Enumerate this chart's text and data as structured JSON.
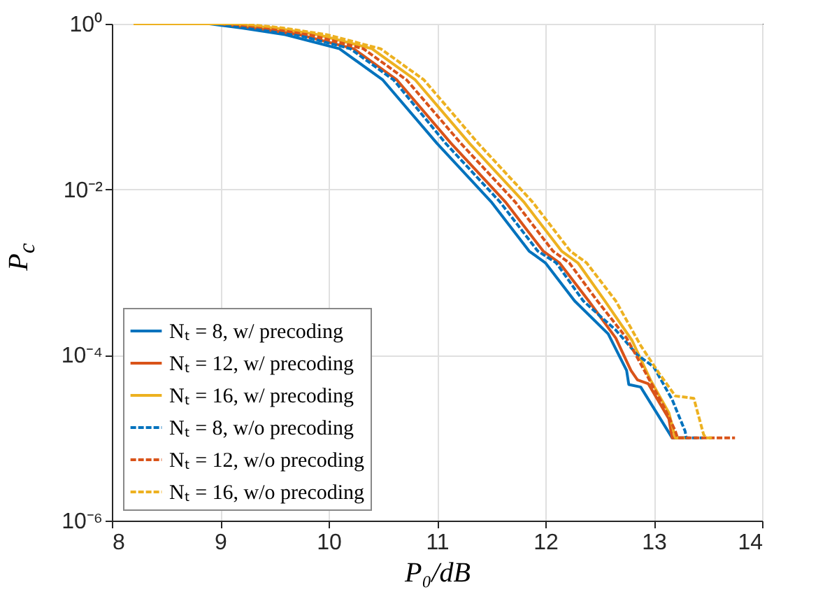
{
  "chart_data": {
    "type": "line",
    "xlabel": "P₀/dB",
    "ylabel": "P$_{c}$",
    "log": "y",
    "grid": true,
    "legend": "bottom left",
    "xlim": [
      8,
      14
    ],
    "xticks": [
      8,
      9,
      10,
      11,
      12,
      13,
      14
    ],
    "ylim": [
      1e-06,
      1
    ],
    "yticks": [
      {
        "value": 1,
        "label": "10⁰"
      },
      {
        "value": 0.01,
        "label": "10⁻²"
      },
      {
        "value": 0.0001,
        "label": "10⁻⁴"
      },
      {
        "value": 1e-06,
        "label": "10⁻⁶"
      }
    ],
    "series": [
      {
        "name": "Nₜ = 8, w/ precoding",
        "color": "#0072bd",
        "line_style": "solid",
        "x": [
          8.2,
          8.9,
          9.2,
          9.6,
          10.1,
          10.5,
          11.0,
          11.5,
          11.85,
          12.0,
          12.27,
          12.58,
          12.75,
          12.77,
          12.88,
          13.17,
          13.3
        ],
        "values": [
          1,
          1,
          0.89,
          0.74,
          0.5,
          0.21,
          0.036,
          0.0071,
          0.0018,
          0.0013,
          0.00045,
          0.00018,
          6.5e-05,
          4.4e-05,
          4.1e-05,
          1e-05,
          1e-05
        ]
      },
      {
        "name": "Nₜ = 12, w/ precoding",
        "color": "#d95319",
        "line_style": "solid",
        "x": [
          8.2,
          9.0,
          9.33,
          9.73,
          10.23,
          10.63,
          11.13,
          11.63,
          11.98,
          12.13,
          12.4,
          12.65,
          12.79,
          12.85,
          12.95,
          13.14,
          13.17,
          13.3
        ],
        "values": [
          1,
          1,
          0.89,
          0.74,
          0.5,
          0.21,
          0.036,
          0.0071,
          0.0018,
          0.0013,
          0.00045,
          0.00016,
          6.5e-05,
          5e-05,
          4.5e-05,
          1.7e-05,
          1e-05,
          1e-05
        ]
      },
      {
        "name": "Nₜ = 16, w/ precoding",
        "color": "#edb120",
        "line_style": "solid",
        "x": [
          8.2,
          9.1,
          9.5,
          9.9,
          10.4,
          10.8,
          11.3,
          11.8,
          12.15,
          12.3,
          12.55,
          12.8,
          12.97,
          13.14,
          13.2,
          13.3
        ],
        "values": [
          1,
          1,
          0.89,
          0.74,
          0.5,
          0.21,
          0.036,
          0.0071,
          0.0018,
          0.0013,
          0.00045,
          0.00015,
          5e-05,
          2e-05,
          1e-05,
          1e-05
        ]
      },
      {
        "name": "Nₜ = 8, w/o precoding",
        "color": "#0072bd",
        "line_style": "dashed",
        "x": [
          8.2,
          9.0,
          9.3,
          9.7,
          10.2,
          10.6,
          11.08,
          11.58,
          11.93,
          12.1,
          12.35,
          12.65,
          12.85,
          13.0,
          13.17,
          13.29,
          13.3,
          13.45
        ],
        "values": [
          1,
          1,
          0.89,
          0.74,
          0.5,
          0.21,
          0.036,
          0.0071,
          0.0018,
          0.0013,
          0.00045,
          0.0002,
          0.0001,
          7.2e-05,
          2.9e-05,
          1.2e-05,
          1e-05,
          1e-05
        ]
      },
      {
        "name": "Nₜ = 12, w/o precoding",
        "color": "#d95319",
        "line_style": "dashed",
        "x": [
          8.2,
          9.1,
          9.42,
          9.82,
          10.32,
          10.72,
          11.22,
          11.72,
          12.07,
          12.22,
          12.48,
          12.75,
          12.9,
          13.1,
          13.2,
          13.22,
          13.75
        ],
        "values": [
          1,
          1,
          0.89,
          0.74,
          0.5,
          0.21,
          0.036,
          0.0071,
          0.0018,
          0.0013,
          0.00045,
          0.00016,
          7e-05,
          2.3e-05,
          1.2e-05,
          1e-05,
          1e-05
        ]
      },
      {
        "name": "Nₜ = 16, w/o precoding",
        "color": "#edb120",
        "line_style": "dashed",
        "x": [
          8.2,
          9.2,
          9.58,
          9.98,
          10.48,
          10.88,
          11.38,
          11.88,
          12.23,
          12.38,
          12.65,
          12.88,
          13.05,
          13.2,
          13.37,
          13.46,
          13.48,
          13.55
        ],
        "values": [
          1,
          1,
          0.89,
          0.74,
          0.5,
          0.21,
          0.036,
          0.0071,
          0.0018,
          0.0013,
          0.00045,
          0.00013,
          6e-05,
          3.2e-05,
          3e-05,
          1.1e-05,
          1e-05,
          1e-05
        ]
      }
    ]
  }
}
